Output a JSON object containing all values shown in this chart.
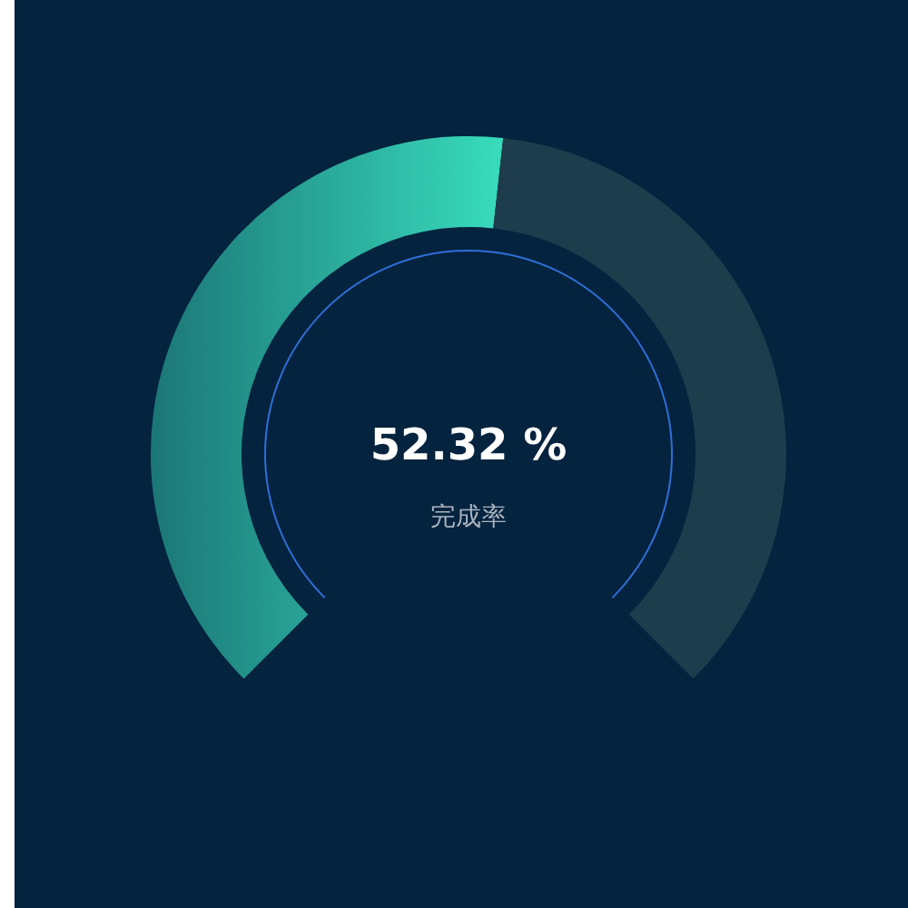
{
  "chart_data": {
    "type": "donut",
    "categories": [
      null,
      null
    ],
    "values": [
      52.32,
      47.68
    ],
    "colors": [
      "#38dcbc",
      "#1d3c4c"
    ],
    "value_labels": [
      "52.32 %",
      null
    ],
    "annotations": [
      "完成率"
    ]
  }
}
